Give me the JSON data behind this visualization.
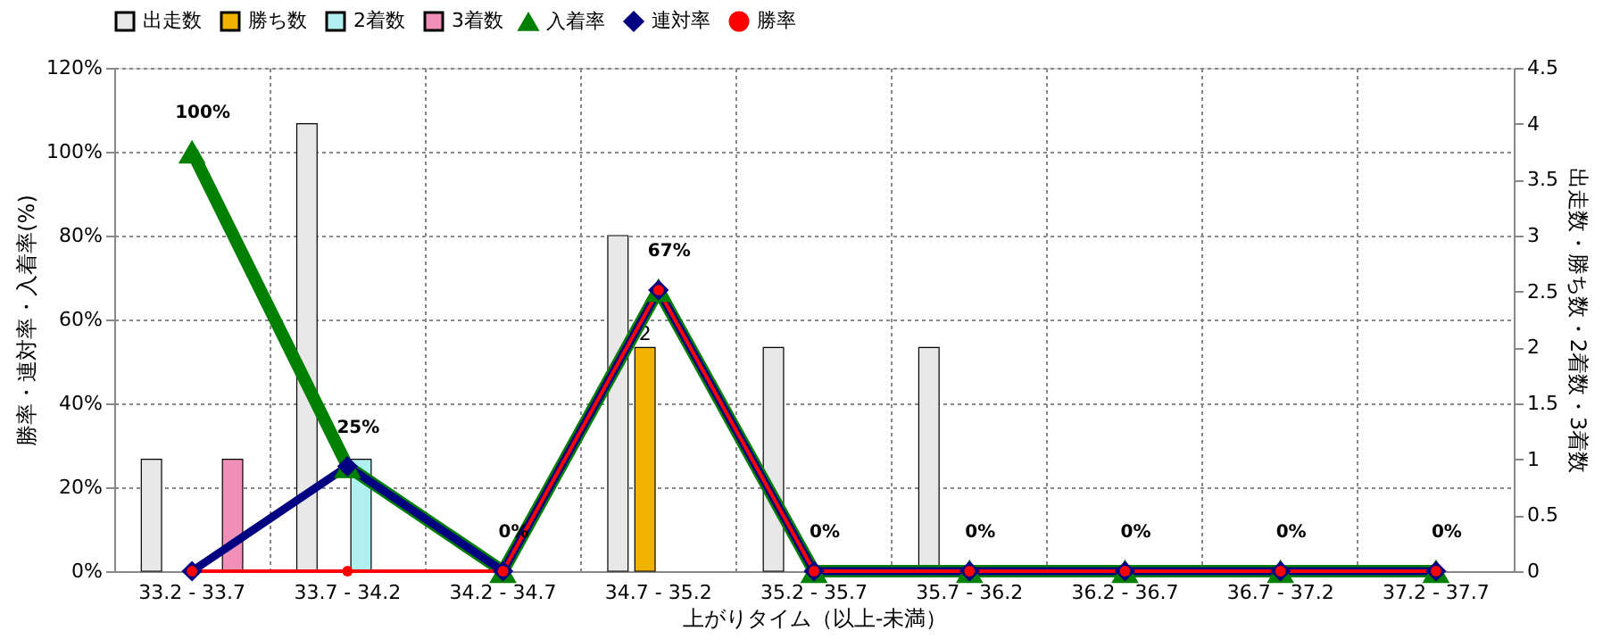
{
  "chart_data": {
    "type": "bar",
    "xlabel": "上がりタイム（以上-未満）",
    "ylabel": "勝率・連対率・入着率(%)",
    "y2label": "出走数・勝ち数・2着数・3着数",
    "categories": [
      "33.2 - 33.7",
      "33.7 - 34.2",
      "34.2 - 34.7",
      "34.7 - 35.2",
      "35.2 - 35.7",
      "35.7 - 36.2",
      "36.2 - 36.7",
      "36.7 - 37.2",
      "37.2 - 37.7"
    ],
    "series": [
      {
        "name": "出走数",
        "axis": "y2",
        "color": "#e8e8e8",
        "values": [
          1,
          4,
          0,
          3,
          2,
          2,
          0,
          0,
          0
        ]
      },
      {
        "name": "勝ち数",
        "axis": "y2",
        "color": "#f0b400",
        "values": [
          0,
          0,
          0,
          2,
          0,
          0,
          0,
          0,
          0
        ],
        "value_labels": [
          null,
          null,
          null,
          "2",
          null,
          null,
          null,
          null,
          null
        ]
      },
      {
        "name": "2着数",
        "axis": "y2",
        "color": "#b0f0f0",
        "values": [
          0,
          1,
          0,
          0,
          0,
          0,
          0,
          0,
          0
        ]
      },
      {
        "name": "3着数",
        "axis": "y2",
        "color": "#f090b8",
        "values": [
          1,
          0,
          0,
          0,
          0,
          0,
          0,
          0,
          0
        ]
      },
      {
        "name": "入着率",
        "type": "line",
        "axis": "y",
        "color": "#008000",
        "marker": "triangle",
        "values": [
          100,
          25,
          0,
          67,
          0,
          0,
          0,
          0,
          0
        ],
        "value_labels": [
          "100%",
          "25%",
          "0%",
          "67%",
          "0%",
          "0%",
          "0%",
          "0%",
          "0%"
        ]
      },
      {
        "name": "連対率",
        "type": "line",
        "axis": "y",
        "color": "#000080",
        "marker": "diamond",
        "values": [
          0,
          25,
          0,
          67,
          0,
          0,
          0,
          0,
          0
        ]
      },
      {
        "name": "勝率",
        "type": "line",
        "axis": "y",
        "color": "#ff0000",
        "marker": "circle",
        "values": [
          0,
          0,
          0,
          67,
          0,
          0,
          0,
          0,
          0
        ]
      }
    ],
    "ylim": [
      0,
      120
    ],
    "yticks": [
      {
        "value": 0,
        "label": "0%"
      },
      {
        "value": 20,
        "label": "20%"
      },
      {
        "value": 40,
        "label": "40%"
      },
      {
        "value": 60,
        "label": "60%"
      },
      {
        "value": 80,
        "label": "80%"
      },
      {
        "value": 100,
        "label": "100%"
      },
      {
        "value": 120,
        "label": "120%"
      }
    ],
    "y2lim": [
      0,
      4.5
    ],
    "y2ticks": [
      0,
      0.5,
      1,
      1.5,
      2,
      2.5,
      3,
      3.5,
      4,
      4.5
    ],
    "grid": true,
    "legend": "top left",
    "line_style": "solid"
  }
}
